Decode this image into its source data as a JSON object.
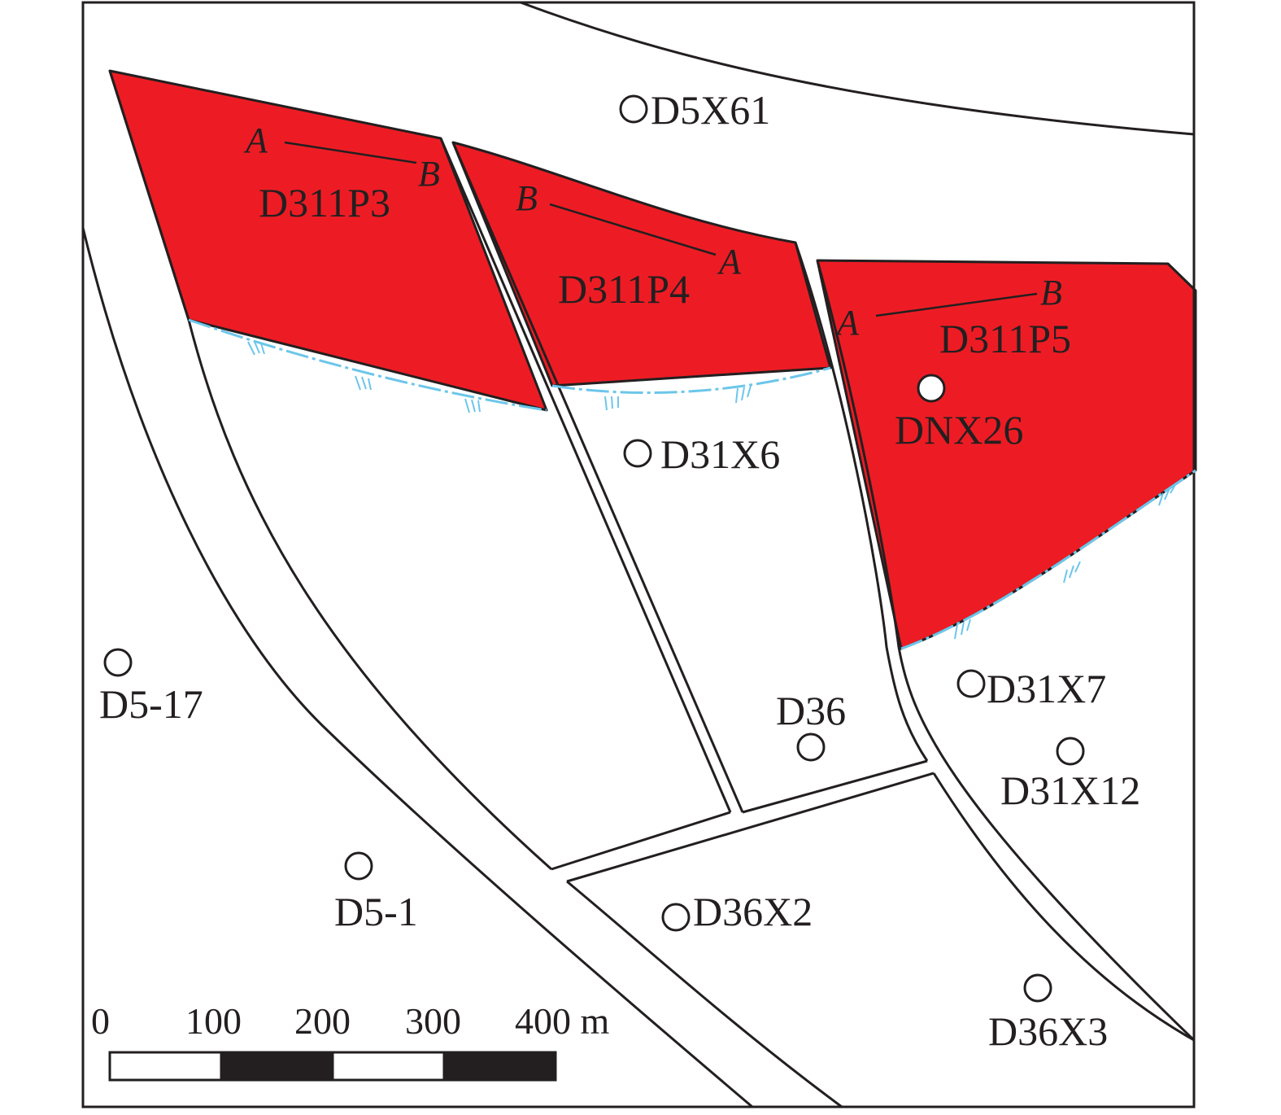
{
  "colors": {
    "zone_fill": "#ed1c24",
    "contact_line": "#6cc6ea",
    "line": "#231f20",
    "background": "#ffffff"
  },
  "zones": [
    {
      "id": "D311P3",
      "label": "D311P3",
      "section_start": "A",
      "section_end": "B"
    },
    {
      "id": "D311P4",
      "label": "D311P4",
      "section_start": "B",
      "section_end": "A"
    },
    {
      "id": "D311P5",
      "label": "D311P5",
      "section_start": "A",
      "section_end": "B"
    }
  ],
  "wells": [
    {
      "id": "DNX26",
      "label": "DNX26"
    },
    {
      "id": "D5X61",
      "label": "D5X61"
    },
    {
      "id": "D31X6",
      "label": "D31X6"
    },
    {
      "id": "D31X7",
      "label": "D31X7"
    },
    {
      "id": "D31X12",
      "label": "D31X12"
    },
    {
      "id": "D36",
      "label": "D36"
    },
    {
      "id": "D36X2",
      "label": "D36X2"
    },
    {
      "id": "D36X3",
      "label": "D36X3"
    },
    {
      "id": "D5-17",
      "label": "D5-17"
    },
    {
      "id": "D5-1",
      "label": "D5-1"
    }
  ],
  "scale_bar": {
    "ticks": [
      "0",
      "100",
      "200",
      "300",
      "400 m"
    ]
  }
}
